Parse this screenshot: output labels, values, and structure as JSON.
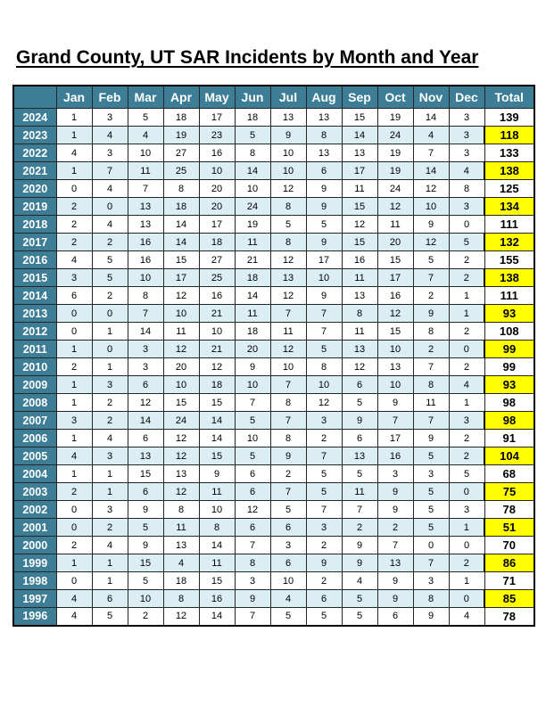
{
  "page": {
    "title": "Grand County, UT SAR Incidents by Month and Year"
  },
  "colors": {
    "header_bg": "#3d7d96",
    "header_text": "#ffffff",
    "row_bg": "#ffffff",
    "row_alt_bg": "#daeef3",
    "total_bg": "#ffff00",
    "grid": "#262626",
    "outer_border": "#000000"
  },
  "table": {
    "corner_label": "",
    "month_columns": [
      "Jan",
      "Feb",
      "Mar",
      "Apr",
      "May",
      "Jun",
      "Jul",
      "Aug",
      "Sep",
      "Oct",
      "Nov",
      "Dec"
    ],
    "total_column": "Total",
    "rows": [
      {
        "year": "2024",
        "values": [
          1,
          3,
          5,
          18,
          17,
          18,
          13,
          13,
          15,
          19,
          14,
          3
        ],
        "total": 139
      },
      {
        "year": "2023",
        "values": [
          1,
          4,
          4,
          19,
          23,
          5,
          9,
          8,
          14,
          24,
          4,
          3
        ],
        "total": 118
      },
      {
        "year": "2022",
        "values": [
          4,
          3,
          10,
          27,
          16,
          8,
          10,
          13,
          13,
          19,
          7,
          3
        ],
        "total": 133
      },
      {
        "year": "2021",
        "values": [
          1,
          7,
          11,
          25,
          10,
          14,
          10,
          6,
          17,
          19,
          14,
          4
        ],
        "total": 138
      },
      {
        "year": "2020",
        "values": [
          0,
          4,
          7,
          8,
          20,
          10,
          12,
          9,
          11,
          24,
          12,
          8
        ],
        "total": 125
      },
      {
        "year": "2019",
        "values": [
          2,
          0,
          13,
          18,
          20,
          24,
          8,
          9,
          15,
          12,
          10,
          3
        ],
        "total": 134
      },
      {
        "year": "2018",
        "values": [
          2,
          4,
          13,
          14,
          17,
          19,
          5,
          5,
          12,
          11,
          9,
          0
        ],
        "total": 111
      },
      {
        "year": "2017",
        "values": [
          2,
          2,
          16,
          14,
          18,
          11,
          8,
          9,
          15,
          20,
          12,
          5
        ],
        "total": 132
      },
      {
        "year": "2016",
        "values": [
          4,
          5,
          16,
          15,
          27,
          21,
          12,
          17,
          16,
          15,
          5,
          2
        ],
        "total": 155
      },
      {
        "year": "2015",
        "values": [
          3,
          5,
          10,
          17,
          25,
          18,
          13,
          10,
          11,
          17,
          7,
          2
        ],
        "total": 138
      },
      {
        "year": "2014",
        "values": [
          6,
          2,
          8,
          12,
          16,
          14,
          12,
          9,
          13,
          16,
          2,
          1
        ],
        "total": 111
      },
      {
        "year": "2013",
        "values": [
          0,
          0,
          7,
          10,
          21,
          11,
          7,
          7,
          8,
          12,
          9,
          1
        ],
        "total": 93
      },
      {
        "year": "2012",
        "values": [
          0,
          1,
          14,
          11,
          10,
          18,
          11,
          7,
          11,
          15,
          8,
          2
        ],
        "total": 108
      },
      {
        "year": "2011",
        "values": [
          1,
          0,
          3,
          12,
          21,
          20,
          12,
          5,
          13,
          10,
          2,
          0
        ],
        "total": 99
      },
      {
        "year": "2010",
        "values": [
          2,
          1,
          3,
          20,
          12,
          9,
          10,
          8,
          12,
          13,
          7,
          2
        ],
        "total": 99
      },
      {
        "year": "2009",
        "values": [
          1,
          3,
          6,
          10,
          18,
          10,
          7,
          10,
          6,
          10,
          8,
          4
        ],
        "total": 93
      },
      {
        "year": "2008",
        "values": [
          1,
          2,
          12,
          15,
          15,
          7,
          8,
          12,
          5,
          9,
          11,
          1
        ],
        "total": 98
      },
      {
        "year": "2007",
        "values": [
          3,
          2,
          14,
          24,
          14,
          5,
          7,
          3,
          9,
          7,
          7,
          3
        ],
        "total": 98
      },
      {
        "year": "2006",
        "values": [
          1,
          4,
          6,
          12,
          14,
          10,
          8,
          2,
          6,
          17,
          9,
          2
        ],
        "total": 91
      },
      {
        "year": "2005",
        "values": [
          4,
          3,
          13,
          12,
          15,
          5,
          9,
          7,
          13,
          16,
          5,
          2
        ],
        "total": 104
      },
      {
        "year": "2004",
        "values": [
          1,
          1,
          15,
          13,
          9,
          6,
          2,
          5,
          5,
          3,
          3,
          5
        ],
        "total": 68
      },
      {
        "year": "2003",
        "values": [
          2,
          1,
          6,
          12,
          11,
          6,
          7,
          5,
          11,
          9,
          5,
          0
        ],
        "total": 75
      },
      {
        "year": "2002",
        "values": [
          0,
          3,
          9,
          8,
          10,
          12,
          5,
          7,
          7,
          9,
          5,
          3
        ],
        "total": 78
      },
      {
        "year": "2001",
        "values": [
          0,
          2,
          5,
          11,
          8,
          6,
          6,
          3,
          2,
          2,
          5,
          1
        ],
        "total": 51
      },
      {
        "year": "2000",
        "values": [
          2,
          4,
          9,
          13,
          14,
          7,
          3,
          2,
          9,
          7,
          0,
          0
        ],
        "total": 70
      },
      {
        "year": "1999",
        "values": [
          1,
          1,
          15,
          4,
          11,
          8,
          6,
          9,
          9,
          13,
          7,
          2
        ],
        "total": 86
      },
      {
        "year": "1998",
        "values": [
          0,
          1,
          5,
          18,
          15,
          3,
          10,
          2,
          4,
          9,
          3,
          1
        ],
        "total": 71
      },
      {
        "year": "1997",
        "values": [
          4,
          6,
          10,
          8,
          16,
          9,
          4,
          6,
          5,
          9,
          8,
          0
        ],
        "total": 85
      },
      {
        "year": "1996",
        "values": [
          4,
          5,
          2,
          12,
          14,
          7,
          5,
          5,
          5,
          6,
          9,
          4
        ],
        "total": 78
      }
    ]
  }
}
